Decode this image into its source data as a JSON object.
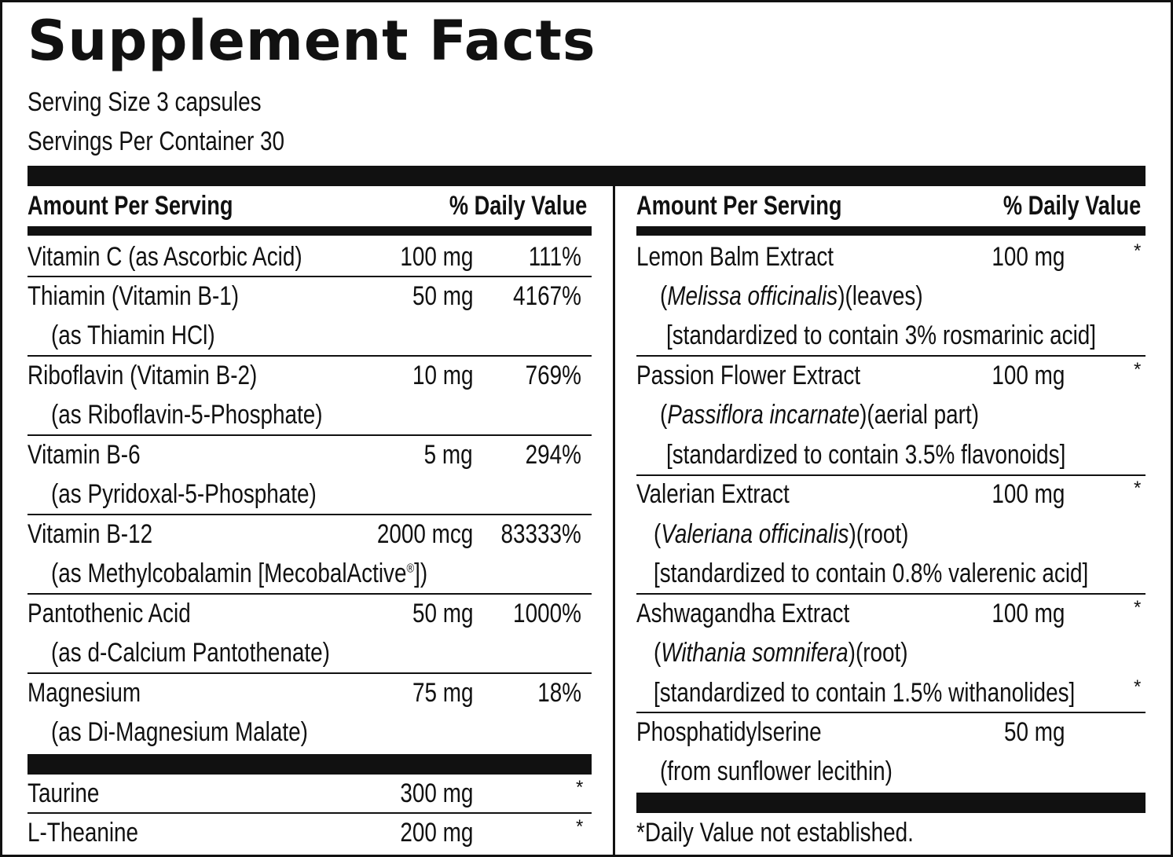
{
  "title": "Supplement Facts",
  "serving_size": "Serving Size 3 capsules",
  "servings_per_container": "Servings Per Container 30",
  "header": {
    "amount_per_serving": "Amount Per Serving",
    "daily_value": "% Daily Value"
  },
  "left": {
    "vitamin_c": {
      "name": "Vitamin C (as Ascorbic Acid)",
      "amount": "100 mg",
      "dv": "111%"
    },
    "thiamin": {
      "name": "Thiamin (Vitamin B-1)",
      "sub": "(as Thiamin HCl)",
      "amount": "50 mg",
      "dv": "4167%"
    },
    "riboflavin": {
      "name": "Riboflavin (Vitamin B-2)",
      "sub": "(as Riboflavin-5-Phosphate)",
      "amount": "10 mg",
      "dv": "769%"
    },
    "b6": {
      "name": "Vitamin B-6",
      "sub": "(as Pyridoxal-5-Phosphate)",
      "amount": "5 mg",
      "dv": "294%"
    },
    "b12": {
      "name": "Vitamin B-12",
      "sub_prefix": "(as Methylcobalamin [MecobalActive",
      "sub_mark": "®",
      "sub_suffix": "])",
      "amount": "2000 mcg",
      "dv": "83333%"
    },
    "pantothenic": {
      "name": "Pantothenic Acid",
      "sub": "(as d-Calcium Pantothenate)",
      "amount": "50 mg",
      "dv": "1000%"
    },
    "magnesium": {
      "name": "Magnesium",
      "sub": "(as Di-Magnesium Malate)",
      "amount": "75 mg",
      "dv": "18%"
    },
    "taurine": {
      "name": "Taurine",
      "amount": "300 mg",
      "dv": "*"
    },
    "theanine": {
      "name": "L-Theanine",
      "amount": "200 mg",
      "dv": "*"
    }
  },
  "right": {
    "lemon_balm": {
      "name": "Lemon Balm Extract",
      "amount": "100 mg",
      "dv": "*",
      "latin": "Melissa officinalis",
      "part": ")(leaves)",
      "std": "[standardized to contain 3% rosmarinic acid]"
    },
    "passion_flower": {
      "name": "Passion Flower Extract",
      "amount": "100 mg",
      "dv": "*",
      "latin": "Passiflora incarnate",
      "part": ")(aerial part)",
      "std": "[standardized to contain 3.5% flavonoids]"
    },
    "valerian": {
      "name": "Valerian Extract",
      "amount": "100 mg",
      "dv": "*",
      "latin": "Valeriana officinalis",
      "part": ")(root)",
      "std": "[standardized to contain 0.8% valerenic acid]"
    },
    "ashwagandha": {
      "name": "Ashwagandha Extract",
      "amount": "100 mg",
      "dv": "*",
      "latin": "Withania somnifera",
      "part": ")(root)",
      "std": "[standardized to contain 1.5% withanolides]",
      "std_dv": "*"
    },
    "phosphatidylserine": {
      "name": "Phosphatidylserine",
      "sub": "(from sunflower lecithin)",
      "amount": "50 mg"
    }
  },
  "footnote": "*Daily Value not established.",
  "open_paren": "("
}
